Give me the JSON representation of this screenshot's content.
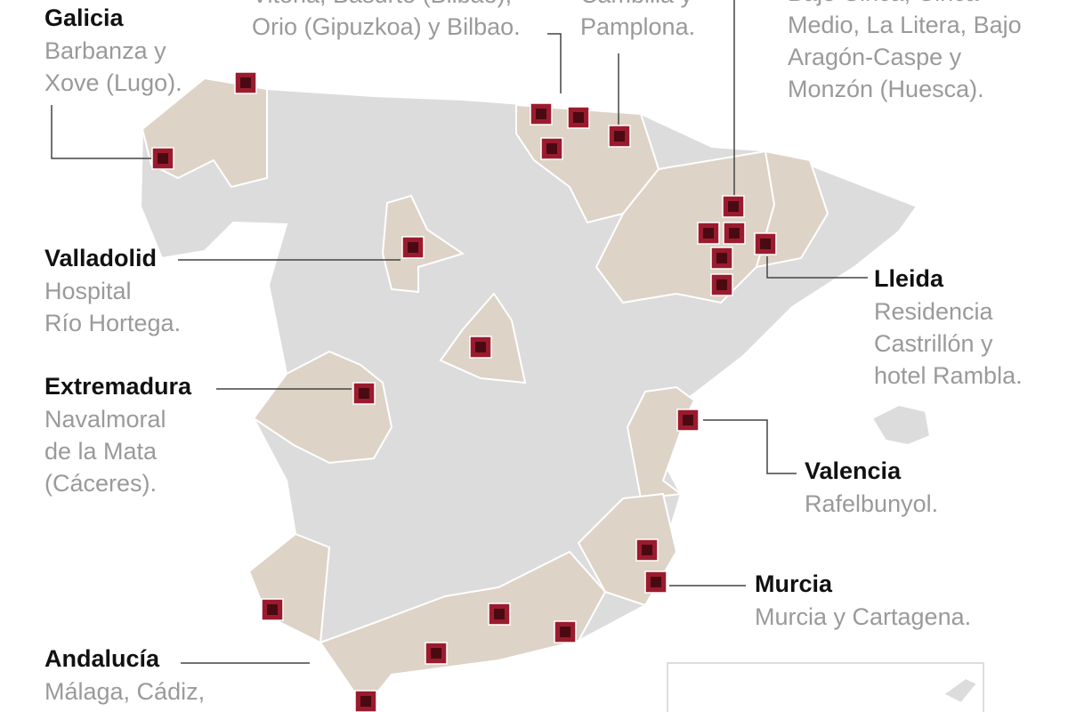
{
  "regions": [
    {
      "name": "Galicia",
      "lines": [
        "Barbanza y",
        "Xove (Lugo)."
      ]
    },
    {
      "name": "Valladolid",
      "lines": [
        "Hospital",
        "Río Hortega."
      ]
    },
    {
      "name": "Extremadura",
      "lines": [
        "Navalmoral",
        "de la Mata",
        "(Cáceres)."
      ]
    },
    {
      "name": "Lleida",
      "lines": [
        "Residencia",
        "Castrillón y",
        "hotel Rambla."
      ]
    },
    {
      "name": "Valencia",
      "lines": [
        "Rafelbunyol."
      ]
    },
    {
      "name": "Murcia",
      "lines": [
        "Murcia y Cartagena."
      ]
    },
    {
      "name": "Andalucía",
      "lines": [
        "Málaga, Cádiz,"
      ]
    }
  ],
  "cut_labels": [
    [
      "Vitoria, Basurto (Bilbao),",
      "Orio (Gipuzkoa) y Bilbao."
    ],
    [
      "Cambilla y",
      "Pamplona."
    ],
    [
      "Bajo Cinca, Cinca",
      "Medio, La Litera,  Bajo",
      "Aragón-Caspe y",
      "Monzón (Huesca)."
    ]
  ]
}
